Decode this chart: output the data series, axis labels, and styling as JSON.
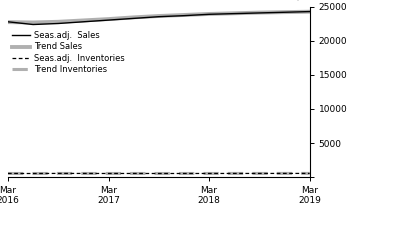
{
  "ylim": [
    0,
    25000
  ],
  "yticks": [
    0,
    5000,
    10000,
    15000,
    20000,
    25000
  ],
  "ytick_labels": [
    "",
    "5000",
    "10000",
    "15000",
    "20000",
    "25000"
  ],
  "xtick_labels": [
    "Mar\n2016",
    "Mar\n2017",
    "Mar\n2018",
    "Mar\n2019"
  ],
  "seas_sales": [
    22800,
    22400,
    22550,
    22800,
    23050,
    23300,
    23550,
    23700,
    23900,
    24000,
    24100,
    24200,
    24300
  ],
  "trend_sales": [
    22750,
    22700,
    22800,
    23000,
    23200,
    23450,
    23650,
    23800,
    23950,
    24050,
    24150,
    24220,
    24280
  ],
  "seas_inv": [
    530,
    520,
    535,
    530,
    525,
    528,
    522,
    525,
    528,
    530,
    532,
    534,
    536
  ],
  "trend_inv": [
    528,
    522,
    530,
    528,
    526,
    527,
    524,
    526,
    528,
    530,
    531,
    533,
    535
  ],
  "x_positions": [
    0,
    3,
    6,
    9,
    12,
    15,
    18,
    21,
    24,
    27,
    30,
    33,
    36
  ],
  "xtick_positions": [
    0,
    12,
    24,
    36
  ],
  "seas_sales_color": "#000000",
  "trend_sales_color": "#b0b0b0",
  "seas_inv_color": "#000000",
  "trend_inv_color": "#b0b0b0",
  "legend_labels": [
    "Seas.adj.  Sales",
    "Trend Sales",
    "Seas.adj.  Inventories",
    "Trend Inventories"
  ],
  "background_color": "#ffffff"
}
